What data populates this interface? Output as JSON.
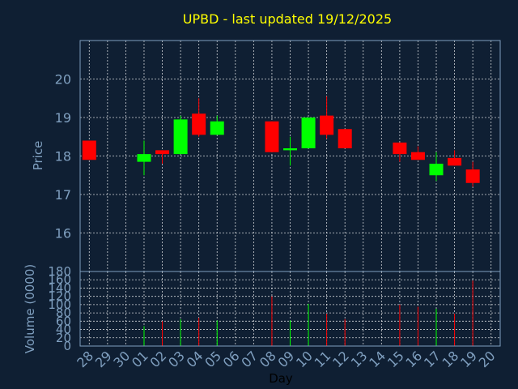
{
  "title": "UPBD - last updated 19/12/2025",
  "colors": {
    "background": "#0f1f33",
    "up": "#00ff00",
    "down": "#ff0000",
    "text": "#7f9fbf",
    "title": "#ffff00"
  },
  "chart_data": [
    {
      "type": "candlestick",
      "ylabel": "Price",
      "ylim": [
        15.0,
        21.0
      ],
      "yticks": [
        "16",
        "17",
        "18",
        "19",
        "20"
      ],
      "grid": true,
      "candles": [
        {
          "day": "28",
          "open": 18.4,
          "close": 17.9,
          "high": 18.4,
          "low": 17.9
        },
        {
          "day": "01",
          "open": 17.85,
          "close": 18.05,
          "high": 18.4,
          "low": 17.5
        },
        {
          "day": "02",
          "open": 18.15,
          "close": 18.05,
          "high": 18.15,
          "low": 17.8
        },
        {
          "day": "03",
          "open": 18.05,
          "close": 18.95,
          "high": 19.05,
          "low": 18.05
        },
        {
          "day": "04",
          "open": 19.1,
          "close": 18.55,
          "high": 19.5,
          "low": 18.5
        },
        {
          "day": "05",
          "open": 18.55,
          "close": 18.9,
          "high": 19.05,
          "low": 18.55
        },
        {
          "day": "08",
          "open": 18.9,
          "close": 18.1,
          "high": 18.9,
          "low": 18.1
        },
        {
          "day": "09",
          "open": 18.15,
          "close": 18.2,
          "high": 18.5,
          "low": 17.75
        },
        {
          "day": "10",
          "open": 18.2,
          "close": 19.0,
          "high": 19.0,
          "low": 18.2
        },
        {
          "day": "11",
          "open": 19.05,
          "close": 18.55,
          "high": 19.55,
          "low": 18.45
        },
        {
          "day": "12",
          "open": 18.7,
          "close": 18.2,
          "high": 18.7,
          "low": 18.2
        },
        {
          "day": "15",
          "open": 18.35,
          "close": 18.05,
          "high": 18.35,
          "low": 17.85
        },
        {
          "day": "16",
          "open": 18.1,
          "close": 17.9,
          "high": 18.25,
          "low": 17.9
        },
        {
          "day": "17",
          "open": 17.5,
          "close": 17.8,
          "high": 18.1,
          "low": 17.35
        },
        {
          "day": "18",
          "open": 17.95,
          "close": 17.75,
          "high": 18.15,
          "low": 17.75
        },
        {
          "day": "19",
          "open": 17.65,
          "close": 17.3,
          "high": 17.85,
          "low": 17.2
        }
      ]
    },
    {
      "type": "bar",
      "ylabel": "Volume (0000)",
      "xlabel": "Day",
      "ylim": [
        0,
        180
      ],
      "yticks": [
        "0",
        "20",
        "40",
        "60",
        "80",
        "100",
        "120",
        "140",
        "160",
        "180"
      ],
      "categories": [
        "28",
        "29",
        "30",
        "01",
        "02",
        "03",
        "04",
        "05",
        "06",
        "07",
        "08",
        "09",
        "10",
        "11",
        "12",
        "13",
        "14",
        "15",
        "16",
        "17",
        "18",
        "19",
        "20"
      ],
      "values": [
        0,
        0,
        0,
        48,
        60,
        65,
        68,
        62,
        0,
        0,
        120,
        62,
        102,
        78,
        65,
        0,
        0,
        100,
        95,
        90,
        78,
        158,
        0
      ],
      "bar_colors": [
        "",
        "",
        "",
        "up",
        "down",
        "up",
        "down",
        "up",
        "",
        "",
        "down",
        "up",
        "up",
        "down",
        "down",
        "",
        "",
        "down",
        "down",
        "up",
        "down",
        "down",
        ""
      ]
    }
  ]
}
